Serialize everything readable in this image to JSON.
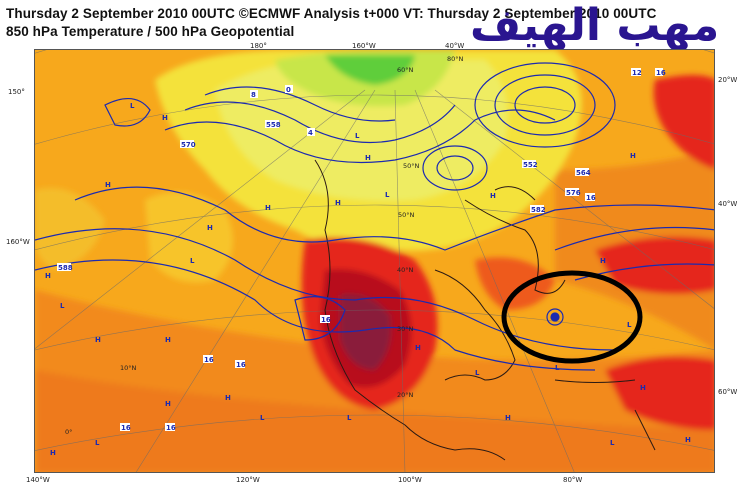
{
  "header": {
    "title_line1": "Thursday 2 September 2010 00UTC ©ECMWF Analysis t+000 VT: Thursday 2 September 2010 00UTC",
    "title_line2": "850 hPa Temperature / 500 hPa Geopotential",
    "watermark_text": "مهب الهيف"
  },
  "map": {
    "edge_labels": {
      "left_top": "150°",
      "left_mid": "160°W",
      "right_top": "20°W",
      "right_mid": "40°W",
      "right_low": "60°W",
      "bottom_1": "140°W",
      "bottom_2": "120°W",
      "bottom_3": "100°W",
      "bottom_4": "80°W",
      "top_1": "180°",
      "top_2": "160°W",
      "top_3": "40°W"
    },
    "interior_labels": {
      "lat_60": "60°N",
      "lat_50": "50°N",
      "lat_40": "40°N",
      "lat_30": "30°N",
      "lat_20": "20°N",
      "lat_10": "10°N",
      "lat_0": "0°",
      "lat_80": "80°N"
    },
    "contour_labels": {
      "c552": "552",
      "c564": "564",
      "c576": "576",
      "c588": "588",
      "c582": "582",
      "c570": "570",
      "c558": "558",
      "c16": "16",
      "c4": "4",
      "c8": "8",
      "c0": "0",
      "c12": "12"
    },
    "pressure_labels": {
      "high": "H",
      "low": "L"
    },
    "colors": {
      "ocean_orange": "#f7a81c",
      "warm_orange": "#f28a1e",
      "deep_orange": "#ee6a1e",
      "red": "#e5281c",
      "dark_red": "#b8101c",
      "maroon": "#8a1a3a",
      "yellow": "#f4e23a",
      "pale_yellow": "#f2ee6a",
      "lime": "#c8e64a",
      "green": "#5ece3a",
      "contour_blue": "#1c2ab0",
      "highlight_ring": "#000000"
    }
  }
}
